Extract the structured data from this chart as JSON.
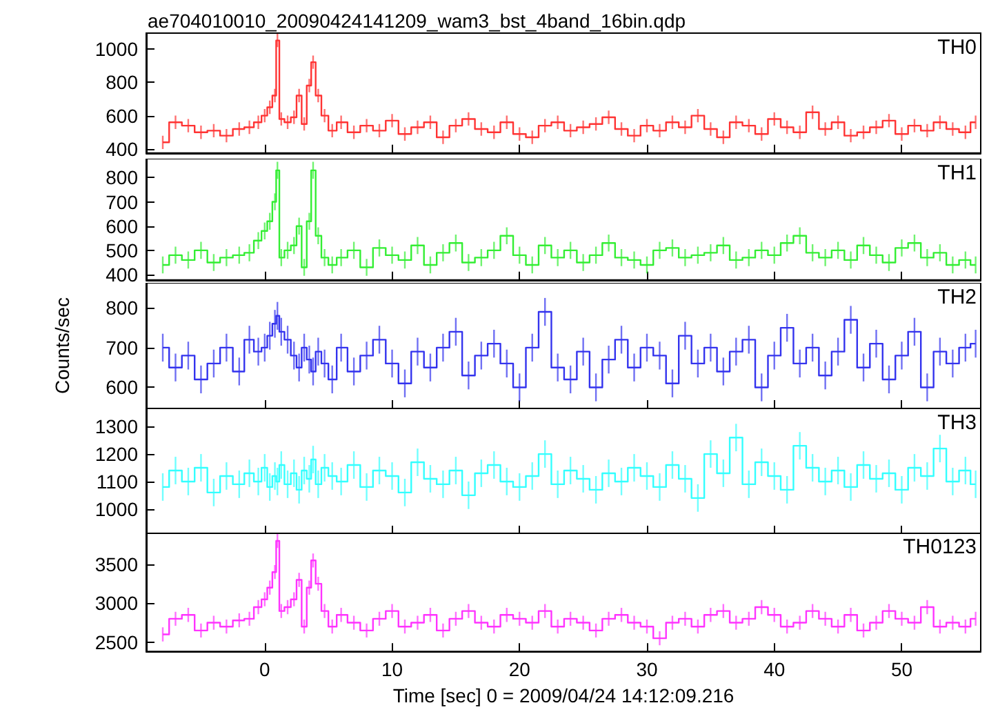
{
  "chart_data": [
    {
      "type": "step",
      "title": "ae704010010_20090424141209_wam3_bst_4band_16bin.qdp",
      "annotations": [
        "TH0"
      ],
      "color": "#ff3333",
      "tick_labels": "y",
      "xlim": [
        -9.3,
        56.2
      ],
      "xticks": [
        0,
        10,
        20,
        30,
        40,
        50
      ],
      "ylim": [
        376,
        1094
      ],
      "yticks": [
        400,
        600,
        800,
        1000
      ],
      "x": [
        -8,
        -7,
        -6,
        -5,
        -4,
        -3,
        -2,
        -1.2,
        -0.5,
        0,
        0.4,
        0.8,
        1.0,
        1.3,
        1.8,
        2.3,
        2.7,
        3.1,
        3.5,
        3.8,
        4.2,
        4.7,
        5.3,
        6,
        7,
        8,
        9,
        10,
        11,
        12,
        13,
        14,
        15,
        16,
        17,
        18,
        19,
        20,
        21,
        22,
        23,
        24,
        25,
        26,
        27,
        28,
        29,
        30,
        31,
        32,
        33,
        34,
        35,
        36,
        37,
        38,
        39,
        40,
        41,
        42,
        43,
        44,
        45,
        46,
        47,
        48,
        49,
        50,
        51,
        52,
        53,
        54,
        55,
        55.8
      ],
      "values": [
        440,
        560,
        540,
        500,
        510,
        480,
        520,
        530,
        560,
        600,
        650,
        720,
        1050,
        580,
        560,
        590,
        720,
        550,
        780,
        920,
        720,
        600,
        510,
        560,
        500,
        540,
        510,
        570,
        490,
        530,
        560,
        470,
        540,
        580,
        520,
        500,
        560,
        490,
        470,
        540,
        560,
        510,
        530,
        550,
        590,
        520,
        480,
        540,
        510,
        560,
        530,
        600,
        520,
        470,
        560,
        540,
        490,
        580,
        530,
        500,
        620,
        520,
        560,
        480,
        500,
        530,
        570,
        490,
        540,
        510,
        560,
        520,
        500,
        560
      ],
      "errors": [
        40,
        40,
        40,
        40,
        40,
        40,
        40,
        40,
        40,
        40,
        40,
        40,
        40,
        40,
        40,
        40,
        40,
        40,
        40,
        40,
        40,
        40,
        40,
        40,
        40,
        40,
        40,
        40,
        40,
        40,
        40,
        40,
        40,
        40,
        40,
        40,
        40,
        40,
        40,
        40,
        40,
        40,
        40,
        40,
        40,
        40,
        40,
        40,
        40,
        40,
        40,
        40,
        40,
        40,
        40,
        40,
        40,
        40,
        40,
        40,
        40,
        40,
        40,
        40,
        40,
        40,
        40,
        40,
        40,
        40,
        40,
        40,
        40,
        40
      ]
    },
    {
      "type": "step",
      "annotations": [
        "TH1"
      ],
      "color": "#33ee33",
      "tick_labels": "y",
      "xlim": [
        -9.3,
        56.2
      ],
      "xticks": [
        0,
        10,
        20,
        30,
        40,
        50
      ],
      "ylim": [
        378,
        878
      ],
      "yticks": [
        400,
        500,
        600,
        700,
        800
      ],
      "x": [
        -8,
        -7,
        -6,
        -5,
        -4,
        -3,
        -2,
        -1.2,
        -0.5,
        0,
        0.4,
        0.8,
        1.0,
        1.3,
        1.8,
        2.3,
        2.7,
        3.1,
        3.5,
        3.8,
        4.2,
        4.7,
        5.3,
        6,
        7,
        8,
        9,
        10,
        11,
        12,
        13,
        14,
        15,
        16,
        17,
        18,
        19,
        20,
        21,
        22,
        23,
        24,
        25,
        26,
        27,
        28,
        29,
        30,
        31,
        32,
        33,
        34,
        35,
        36,
        37,
        38,
        39,
        40,
        41,
        42,
        43,
        44,
        45,
        46,
        47,
        48,
        49,
        50,
        51,
        52,
        53,
        54,
        55,
        55.8
      ],
      "values": [
        440,
        480,
        460,
        500,
        450,
        470,
        480,
        490,
        540,
        580,
        620,
        700,
        830,
        470,
        500,
        520,
        600,
        430,
        620,
        830,
        560,
        470,
        440,
        470,
        500,
        430,
        510,
        480,
        460,
        520,
        440,
        490,
        530,
        450,
        470,
        500,
        560,
        480,
        440,
        520,
        470,
        500,
        450,
        480,
        530,
        470,
        460,
        440,
        500,
        510,
        470,
        480,
        490,
        520,
        460,
        470,
        500,
        480,
        530,
        560,
        490,
        470,
        500,
        460,
        520,
        480,
        450,
        510,
        530,
        470,
        490,
        440,
        460,
        440
      ],
      "errors": [
        35,
        35,
        35,
        35,
        35,
        35,
        35,
        35,
        35,
        35,
        35,
        35,
        35,
        35,
        35,
        35,
        35,
        35,
        35,
        35,
        35,
        35,
        35,
        35,
        35,
        35,
        35,
        35,
        35,
        35,
        35,
        35,
        35,
        35,
        35,
        35,
        35,
        35,
        35,
        35,
        35,
        35,
        35,
        35,
        35,
        35,
        35,
        35,
        35,
        35,
        35,
        35,
        35,
        35,
        35,
        35,
        35,
        35,
        35,
        35,
        35,
        35,
        35,
        35,
        35,
        35,
        35,
        35,
        35,
        35,
        35,
        35,
        35,
        35
      ]
    },
    {
      "type": "step",
      "ylabel": "Counts/sec",
      "annotations": [
        "TH2"
      ],
      "color": "#3333ee",
      "tick_labels": "y",
      "xlim": [
        -9.3,
        56.2
      ],
      "xticks": [
        0,
        10,
        20,
        30,
        40,
        50
      ],
      "ylim": [
        547,
        863
      ],
      "yticks": [
        600,
        700,
        800
      ],
      "x": [
        -8,
        -7,
        -6,
        -5,
        -4,
        -3,
        -2,
        -1.2,
        -0.5,
        0,
        0.4,
        0.8,
        1.0,
        1.3,
        1.8,
        2.3,
        2.7,
        3.1,
        3.5,
        3.8,
        4.2,
        4.7,
        5.3,
        6,
        7,
        8,
        9,
        10,
        11,
        12,
        13,
        14,
        15,
        16,
        17,
        18,
        19,
        20,
        21,
        22,
        23,
        24,
        25,
        26,
        27,
        28,
        29,
        30,
        31,
        32,
        33,
        34,
        35,
        36,
        37,
        38,
        39,
        40,
        41,
        42,
        43,
        44,
        45,
        46,
        47,
        48,
        49,
        50,
        51,
        52,
        53,
        54,
        55,
        55.8
      ],
      "values": [
        700,
        650,
        680,
        620,
        660,
        700,
        640,
        720,
        690,
        700,
        730,
        760,
        780,
        740,
        720,
        680,
        650,
        700,
        670,
        640,
        690,
        660,
        620,
        700,
        640,
        680,
        720,
        660,
        610,
        690,
        650,
        700,
        740,
        630,
        680,
        710,
        660,
        600,
        700,
        790,
        650,
        620,
        690,
        600,
        670,
        720,
        650,
        700,
        680,
        610,
        730,
        660,
        700,
        640,
        690,
        720,
        600,
        680,
        750,
        660,
        700,
        630,
        690,
        770,
        650,
        710,
        620,
        680,
        740,
        600,
        690,
        660,
        700,
        710
      ],
      "errors": [
        35,
        35,
        35,
        35,
        35,
        35,
        35,
        35,
        35,
        35,
        35,
        35,
        35,
        35,
        35,
        35,
        35,
        35,
        35,
        35,
        35,
        35,
        35,
        35,
        35,
        35,
        35,
        35,
        35,
        35,
        35,
        35,
        35,
        35,
        35,
        35,
        35,
        35,
        35,
        35,
        35,
        35,
        35,
        35,
        35,
        35,
        35,
        35,
        35,
        35,
        35,
        35,
        35,
        35,
        35,
        35,
        35,
        35,
        35,
        35,
        35,
        35,
        35,
        35,
        35,
        35,
        35,
        35,
        35,
        35,
        35,
        35,
        35,
        35
      ]
    },
    {
      "type": "step",
      "annotations": [
        "TH3"
      ],
      "color": "#33ffff",
      "tick_labels": "y",
      "xlim": [
        -9.3,
        56.2
      ],
      "xticks": [
        0,
        10,
        20,
        30,
        40,
        50
      ],
      "ylim": [
        909,
        1366
      ],
      "yticks": [
        1000,
        1100,
        1200,
        1300
      ],
      "x": [
        -8,
        -7,
        -6,
        -5,
        -4,
        -3,
        -2,
        -1.2,
        -0.5,
        0,
        0.4,
        0.8,
        1.0,
        1.3,
        1.8,
        2.3,
        2.7,
        3.1,
        3.5,
        3.8,
        4.2,
        4.7,
        5.3,
        6,
        7,
        8,
        9,
        10,
        11,
        12,
        13,
        14,
        15,
        16,
        17,
        18,
        19,
        20,
        21,
        22,
        23,
        24,
        25,
        26,
        27,
        28,
        29,
        30,
        31,
        32,
        33,
        34,
        35,
        36,
        37,
        38,
        39,
        40,
        41,
        42,
        43,
        44,
        45,
        46,
        47,
        48,
        49,
        50,
        51,
        52,
        53,
        54,
        55,
        55.8
      ],
      "values": [
        1080,
        1140,
        1100,
        1150,
        1060,
        1120,
        1090,
        1130,
        1100,
        1150,
        1080,
        1120,
        1100,
        1160,
        1090,
        1130,
        1070,
        1140,
        1110,
        1180,
        1090,
        1150,
        1120,
        1100,
        1160,
        1080,
        1140,
        1120,
        1060,
        1170,
        1110,
        1090,
        1140,
        1050,
        1130,
        1160,
        1100,
        1080,
        1120,
        1200,
        1090,
        1140,
        1110,
        1070,
        1130,
        1100,
        1150,
        1120,
        1080,
        1160,
        1110,
        1040,
        1200,
        1130,
        1260,
        1090,
        1170,
        1120,
        1070,
        1230,
        1150,
        1100,
        1140,
        1080,
        1160,
        1110,
        1130,
        1070,
        1150,
        1120,
        1220,
        1100,
        1140,
        1090
      ],
      "errors": [
        50,
        50,
        50,
        50,
        50,
        50,
        50,
        50,
        50,
        50,
        50,
        50,
        50,
        50,
        50,
        50,
        50,
        50,
        50,
        50,
        50,
        50,
        50,
        50,
        50,
        50,
        50,
        50,
        50,
        50,
        50,
        50,
        50,
        50,
        50,
        50,
        50,
        50,
        50,
        50,
        50,
        50,
        50,
        50,
        50,
        50,
        50,
        50,
        50,
        50,
        50,
        50,
        50,
        50,
        50,
        50,
        50,
        50,
        50,
        50,
        50,
        50,
        50,
        50,
        50,
        50,
        50,
        50,
        50,
        50,
        50,
        50,
        50,
        50
      ]
    },
    {
      "type": "step",
      "xlabel": "Time [sec] 0 = 2009/04/24 14:12:09.216",
      "annotations": [
        "TH0123"
      ],
      "color": "#ff33ff",
      "xlim": [
        -9.3,
        56.2
      ],
      "xticks": [
        0,
        10,
        20,
        30,
        40,
        50
      ],
      "ylim": [
        2381,
        3907
      ],
      "yticks": [
        2500,
        3000,
        3500
      ],
      "x": [
        -8,
        -7,
        -6,
        -5,
        -4,
        -3,
        -2,
        -1.2,
        -0.5,
        0,
        0.4,
        0.8,
        1.0,
        1.3,
        1.8,
        2.3,
        2.7,
        3.1,
        3.5,
        3.8,
        4.2,
        4.7,
        5.3,
        6,
        7,
        8,
        9,
        10,
        11,
        12,
        13,
        14,
        15,
        16,
        17,
        18,
        19,
        20,
        21,
        22,
        23,
        24,
        25,
        26,
        27,
        28,
        29,
        30,
        31,
        32,
        33,
        34,
        35,
        36,
        37,
        38,
        39,
        40,
        41,
        42,
        43,
        44,
        45,
        46,
        47,
        48,
        49,
        50,
        51,
        52,
        53,
        54,
        55,
        55.8
      ],
      "values": [
        2600,
        2800,
        2850,
        2650,
        2750,
        2700,
        2780,
        2800,
        2950,
        3050,
        3200,
        3400,
        3800,
        2900,
        2950,
        3050,
        3300,
        2700,
        3200,
        3550,
        3250,
        2900,
        2700,
        2850,
        2750,
        2650,
        2800,
        2900,
        2700,
        2750,
        2850,
        2650,
        2800,
        2900,
        2750,
        2700,
        2850,
        2800,
        2750,
        2900,
        2700,
        2800,
        2750,
        2650,
        2800,
        2850,
        2750,
        2700,
        2550,
        2750,
        2800,
        2700,
        2850,
        2900,
        2750,
        2800,
        2950,
        2850,
        2700,
        2750,
        2900,
        2800,
        2700,
        2850,
        2650,
        2750,
        2900,
        2800,
        2750,
        2950,
        2700,
        2750,
        2700,
        2800
      ],
      "errors": [
        90,
        90,
        90,
        90,
        90,
        90,
        90,
        90,
        90,
        90,
        90,
        90,
        90,
        90,
        90,
        90,
        90,
        90,
        90,
        90,
        90,
        90,
        90,
        90,
        90,
        90,
        90,
        90,
        90,
        90,
        90,
        90,
        90,
        90,
        90,
        90,
        90,
        90,
        90,
        90,
        90,
        90,
        90,
        90,
        90,
        90,
        90,
        90,
        90,
        90,
        90,
        90,
        90,
        90,
        90,
        90,
        90,
        90,
        90,
        90,
        90,
        90,
        90,
        90,
        90,
        90,
        90,
        90,
        90,
        90,
        90,
        90,
        90,
        90
      ]
    }
  ]
}
